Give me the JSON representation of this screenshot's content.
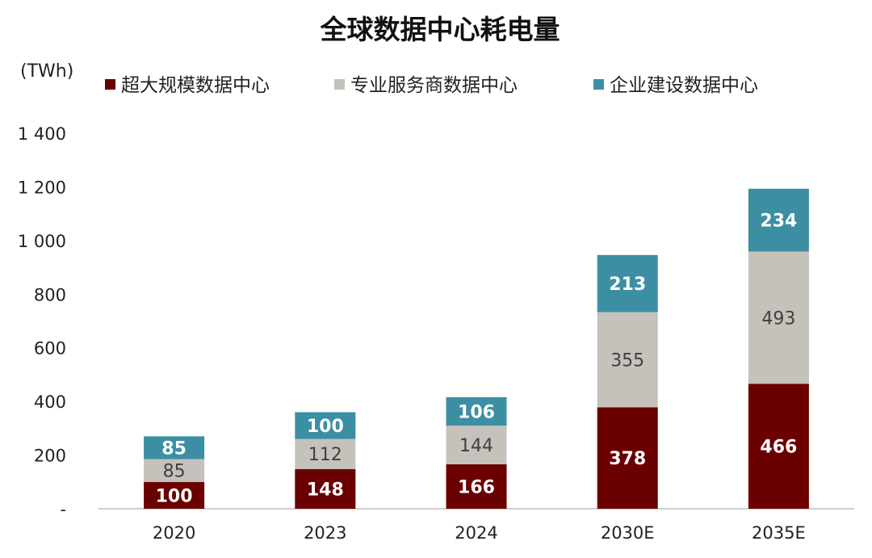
{
  "chart_data": {
    "type": "bar",
    "stacked": true,
    "title": "全球数据中心耗电量",
    "ylabel": "(TWh)",
    "xlabel": "",
    "categories": [
      "2020",
      "2023",
      "2024",
      "2030E",
      "2035E"
    ],
    "series": [
      {
        "name": "超大规模数据中心",
        "color": "#6b0000",
        "label_color": "#ffffff",
        "values": [
          100,
          148,
          166,
          378,
          466
        ]
      },
      {
        "name": "专业服务商数据中心",
        "color": "#c4c2bb",
        "label_color": "#404040",
        "values": [
          85,
          112,
          144,
          355,
          493
        ]
      },
      {
        "name": "企业建设数据中心",
        "color": "#3c8fa3",
        "label_color": "#ffffff",
        "values": [
          85,
          100,
          106,
          213,
          234
        ]
      }
    ],
    "ylim": [
      0,
      1400
    ],
    "yticks": [
      0,
      200,
      400,
      600,
      800,
      1000,
      1200,
      1400
    ],
    "ytick_labels": [
      "-",
      "200",
      "400",
      "600",
      "800",
      "1 000",
      "1 200",
      "1 400"
    ],
    "legend_position": "top",
    "grid": false
  }
}
